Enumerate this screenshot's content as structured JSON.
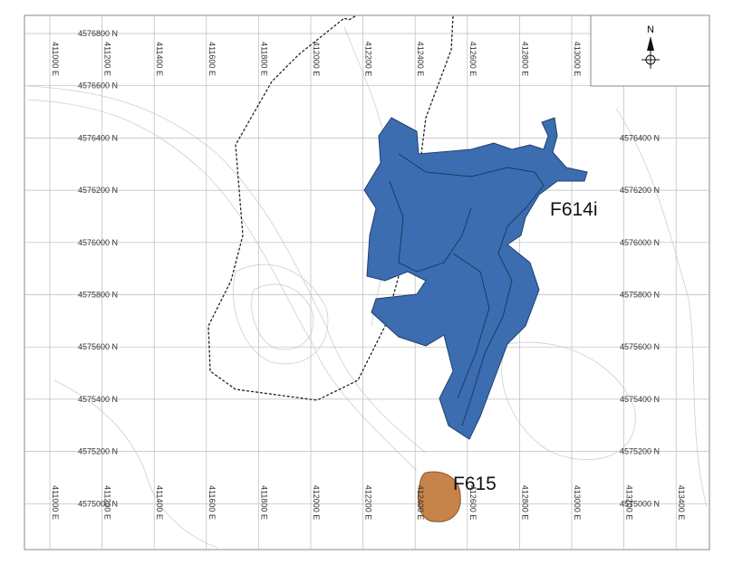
{
  "map": {
    "eastings": [
      "411000 E",
      "411200 E",
      "411400 E",
      "411600 E",
      "411800 E",
      "412000 E",
      "412200 E",
      "412400 E",
      "412600 E",
      "412800 E",
      "413000 E",
      "413200 E",
      "413400 E"
    ],
    "northings": [
      "4576800 N",
      "4576600 N",
      "4576400 N",
      "4576200 N",
      "4576000 N",
      "4575800 N",
      "4575600 N",
      "4575400 N",
      "4575200 N",
      "4575000 N"
    ],
    "features": [
      {
        "label": "F614i"
      },
      {
        "label": "F615"
      }
    ],
    "north_arrow": "N"
  }
}
